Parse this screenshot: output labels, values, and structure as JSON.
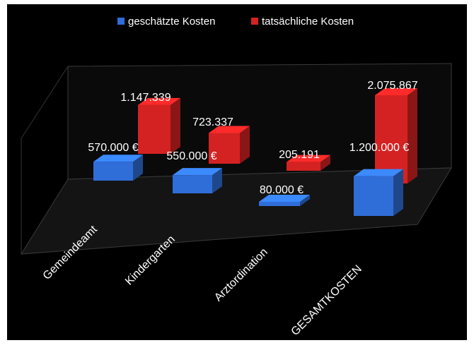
{
  "chart_data": {
    "type": "bar",
    "variant": "3d-column-clustered",
    "categories": [
      "Gemeindeamt",
      "Kindergarten",
      "Arztordination",
      "GESAMTKOSTEN"
    ],
    "series": [
      {
        "name": "geschätzte Kosten",
        "color": "#2f6ed8",
        "values": [
          570000,
          550000,
          80000,
          1200000
        ],
        "labels": [
          "570.000 €",
          "550.000 €",
          "80.000 €",
          "1.200.000 €"
        ]
      },
      {
        "name": "tatsächliche Kosten",
        "color": "#d42222",
        "values": [
          1147339,
          723337,
          205191,
          2075867
        ],
        "labels": [
          "1.147.339",
          "723.337",
          "205.191",
          "2.075.867"
        ]
      }
    ],
    "legend_position": "top",
    "background": "#000000",
    "grid": false
  }
}
